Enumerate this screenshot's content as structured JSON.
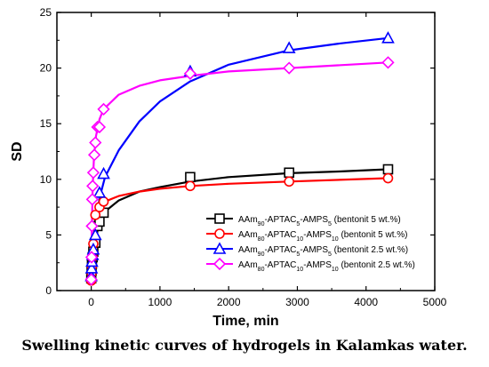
{
  "caption": "Swelling kinetic curves of hydrogels in Kalamkas water.",
  "chart_data": {
    "type": "scatter",
    "xlabel": "Time, min",
    "ylabel": "SD",
    "xlim": [
      -500,
      5000
    ],
    "ylim": [
      0,
      25
    ],
    "xticks": [
      0,
      1000,
      2000,
      3000,
      4000,
      5000
    ],
    "yticks": [
      0,
      5,
      10,
      15,
      20,
      25
    ],
    "grid": false,
    "legend_position": "lower-right",
    "series": [
      {
        "legend_parts": [
          "AAm",
          "90",
          "-APTAC",
          "5",
          "-AMPS",
          "5",
          " (bentonit 5 wt.%)"
        ],
        "color": "#000000",
        "marker": "square",
        "x": [
          0,
          5,
          10,
          20,
          30,
          60,
          90,
          120,
          180,
          1440,
          2880,
          4320
        ],
        "y": [
          1.1,
          1.8,
          2.4,
          3.0,
          3.5,
          4.3,
          5.8,
          6.2,
          7.0,
          10.2,
          10.6,
          10.9
        ],
        "fit": [
          [
            0,
            0.9
          ],
          [
            100,
            5.9
          ],
          [
            200,
            7.1
          ],
          [
            400,
            8.1
          ],
          [
            700,
            8.9
          ],
          [
            1000,
            9.3
          ],
          [
            1440,
            9.8
          ],
          [
            2000,
            10.2
          ],
          [
            2880,
            10.55
          ],
          [
            3600,
            10.7
          ],
          [
            4320,
            10.9
          ]
        ]
      },
      {
        "legend_parts": [
          "AAm",
          "80",
          "-APTAC",
          "10",
          "-AMPS",
          "10",
          " (bentonit 5 wt.%)"
        ],
        "color": "#ff0000",
        "marker": "circle",
        "x": [
          0,
          5,
          10,
          20,
          30,
          60,
          120,
          180,
          1440,
          2880,
          4320
        ],
        "y": [
          0.9,
          1.6,
          2.2,
          3.0,
          4.2,
          6.8,
          7.5,
          8.0,
          9.4,
          9.8,
          10.1
        ],
        "fit": [
          [
            0,
            0.9
          ],
          [
            10,
            2.6
          ],
          [
            30,
            4.6
          ],
          [
            60,
            6.3
          ],
          [
            100,
            7.1
          ],
          [
            200,
            8.0
          ],
          [
            400,
            8.5
          ],
          [
            700,
            8.9
          ],
          [
            1000,
            9.15
          ],
          [
            1440,
            9.4
          ],
          [
            2000,
            9.6
          ],
          [
            2880,
            9.8
          ],
          [
            4320,
            10.1
          ]
        ]
      },
      {
        "legend_parts": [
          "AAm",
          "90",
          "-APTAC",
          "5",
          "-AMPS",
          "5",
          " (bentonit 2.5 wt.%)"
        ],
        "color": "#0000ff",
        "marker": "triangle",
        "x": [
          0,
          5,
          10,
          20,
          30,
          60,
          120,
          180,
          1440,
          2880,
          4320
        ],
        "y": [
          1.3,
          2.0,
          2.6,
          3.2,
          3.7,
          5.0,
          8.8,
          10.5,
          19.7,
          21.8,
          22.7
        ],
        "fit": [
          [
            0,
            1.0
          ],
          [
            60,
            5.5
          ],
          [
            120,
            8.3
          ],
          [
            200,
            10.2
          ],
          [
            400,
            12.6
          ],
          [
            700,
            15.2
          ],
          [
            1000,
            17.0
          ],
          [
            1440,
            18.8
          ],
          [
            2000,
            20.3
          ],
          [
            2880,
            21.6
          ],
          [
            3600,
            22.2
          ],
          [
            4320,
            22.7
          ]
        ]
      },
      {
        "legend_parts": [
          "AAm",
          "80",
          "-APTAC",
          "10",
          "-AMPS",
          "10",
          " (bentonit 2.5 wt.%)"
        ],
        "color": "#ff00ff",
        "marker": "diamond",
        "x": [
          0,
          5,
          10,
          15,
          20,
          30,
          45,
          60,
          90,
          120,
          180,
          1440,
          2880,
          4320
        ],
        "y": [
          1.0,
          3.0,
          5.8,
          8.2,
          9.4,
          10.6,
          12.2,
          13.3,
          14.7,
          14.7,
          16.3,
          19.5,
          20.0,
          20.5
        ],
        "fit": [
          [
            0,
            1.0
          ],
          [
            10,
            6.0
          ],
          [
            20,
            9.2
          ],
          [
            40,
            12.0
          ],
          [
            70,
            13.9
          ],
          [
            120,
            15.4
          ],
          [
            180,
            16.3
          ],
          [
            400,
            17.6
          ],
          [
            700,
            18.4
          ],
          [
            1000,
            18.9
          ],
          [
            1440,
            19.3
          ],
          [
            2000,
            19.7
          ],
          [
            2880,
            20.0
          ],
          [
            4320,
            20.5
          ]
        ]
      }
    ]
  }
}
